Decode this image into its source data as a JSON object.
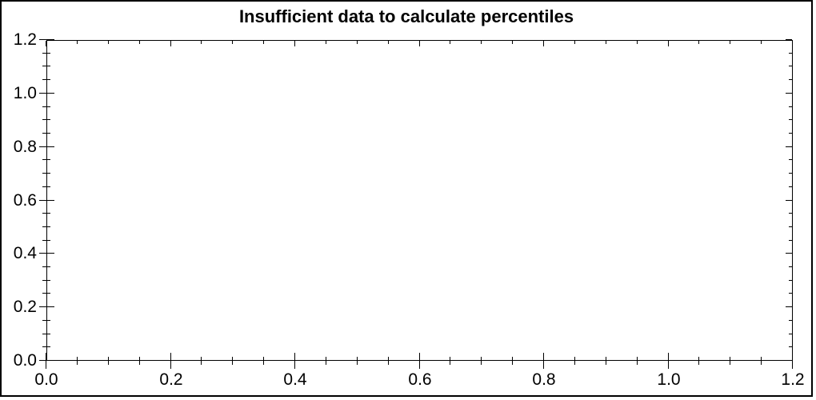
{
  "window": {
    "background": "#ffffff",
    "border_color": "#000000"
  },
  "chart_data": {
    "type": "line",
    "title": "Insufficient data to calculate percentiles",
    "subtitle": "",
    "xlabel": "",
    "ylabel": "",
    "series": [],
    "xlim": [
      0,
      1.2
    ],
    "ylim": [
      0,
      1.2
    ],
    "x_major_ticks": [
      0.0,
      0.2,
      0.4,
      0.6,
      0.8,
      1.0,
      1.2
    ],
    "y_major_ticks": [
      0.0,
      0.2,
      0.4,
      0.6,
      0.8,
      1.0,
      1.2
    ],
    "x_tick_labels": [
      "0.0",
      "0.2",
      "0.4",
      "0.6",
      "0.8",
      "1.0",
      "1.2"
    ],
    "y_tick_labels": [
      "0.0",
      "0.2",
      "0.4",
      "0.6",
      "0.8",
      "1.0",
      "1.2"
    ],
    "minor_tick_interval": 0.05,
    "grid": false,
    "legend": null,
    "frame_style": "closed box with mirrored inward ticks on top and right",
    "axis_color": "#000000",
    "text_color": "#000000",
    "plot_background": "#ffffff"
  }
}
